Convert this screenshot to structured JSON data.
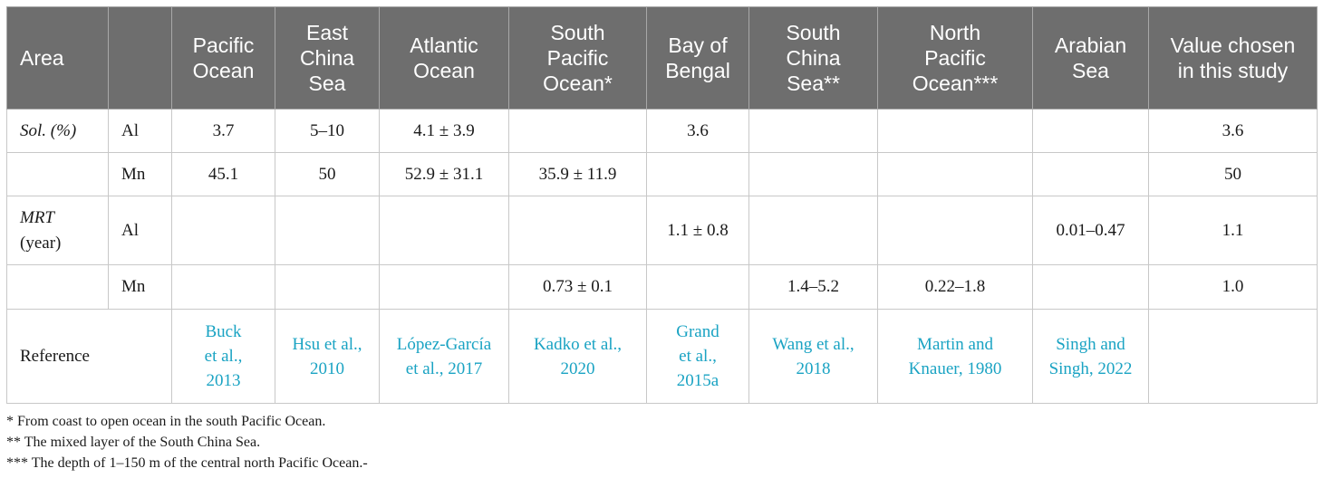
{
  "header": {
    "area": "Area",
    "blank": "",
    "columns": [
      "Pacific\nOcean",
      "East\nChina\nSea",
      "Atlantic\nOcean",
      "South\nPacific\nOcean*",
      "Bay of\nBengal",
      "South\nChina\nSea**",
      "North\nPacific\nOcean***",
      "Arabian\nSea",
      "Value chosen\nin this study"
    ]
  },
  "rows": [
    {
      "group": "Sol. (%)",
      "element": "Al",
      "values": [
        "3.7",
        "5–10",
        "4.1 ± 3.9",
        "",
        "3.6",
        "",
        "",
        "",
        "3.6"
      ]
    },
    {
      "group": "",
      "element": "Mn",
      "values": [
        "45.1",
        "50",
        "52.9 ± 31.1",
        "35.9 ± 11.9",
        "",
        "",
        "",
        "",
        "50"
      ]
    },
    {
      "group": "MRT\n(year)",
      "element": "Al",
      "values": [
        "",
        "",
        "",
        "",
        "1.1 ± 0.8",
        "",
        "",
        "0.01–0.47",
        "1.1"
      ]
    },
    {
      "group": "",
      "element": "Mn",
      "values": [
        "",
        "",
        "",
        "0.73 ± 0.1",
        "",
        "1.4–5.2",
        "0.22–1.8",
        "",
        "1.0"
      ]
    }
  ],
  "reference": {
    "label": "Reference",
    "values": [
      "Buck\net al.,\n2013",
      "Hsu et al.,\n2010",
      "López-García\net al., 2017",
      "Kadko et al.,\n2020",
      "Grand\net al.,\n2015a",
      "Wang et al.,\n2018",
      "Martin and\nKnauer, 1980",
      "Singh and\nSingh, 2022",
      ""
    ]
  },
  "footnotes": [
    "* From coast to open ocean in the south Pacific Ocean.",
    "** The mixed layer of the South China Sea.",
    "*** The depth of 1–150 m of the central north Pacific Ocean.-"
  ]
}
